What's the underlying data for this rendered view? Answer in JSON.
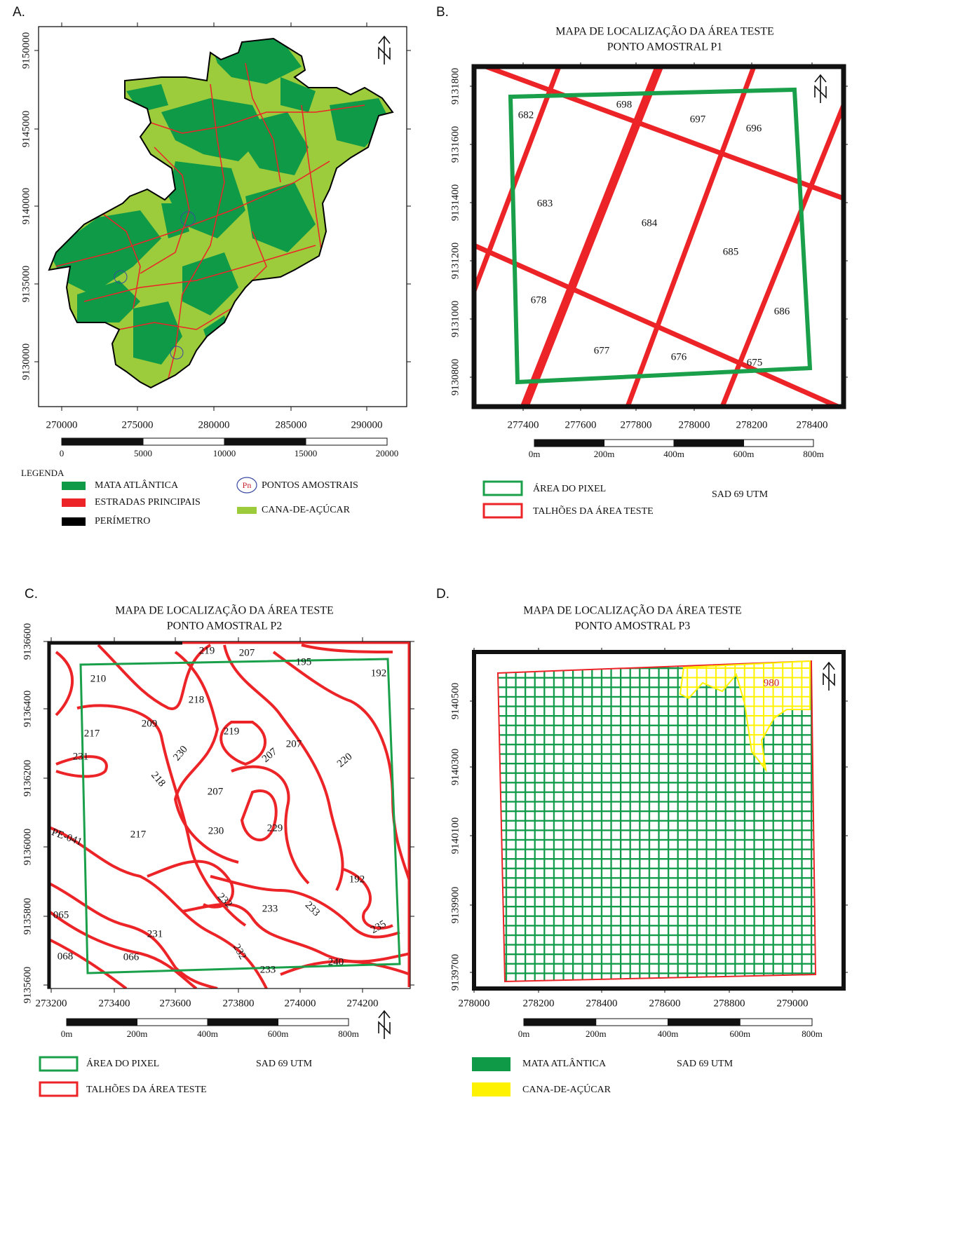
{
  "panels": [
    {
      "label": "A.",
      "xticks": [
        270000,
        275000,
        280000,
        285000,
        290000
      ],
      "yticks": [
        9150000,
        9145000,
        9140000,
        9135000,
        9130000
      ],
      "scale": [
        0,
        5000,
        10000,
        15000,
        20000
      ],
      "legend_title": "LEGENDA",
      "legend": [
        {
          "label": "MATA ATLÂNTICA",
          "color": "#0f9a48"
        },
        {
          "label": "ESTRADAS PRINCIPAIS",
          "color": "#ec2327"
        },
        {
          "label": "PERÍMETRO",
          "color": "#000000"
        },
        {
          "label": "PONTOS AMOSTRAIS",
          "icon": "Pn"
        },
        {
          "label": "CANA-DE-AÇÚCAR",
          "color": "#9ccb3b"
        }
      ]
    },
    {
      "label": "B.",
      "title": "MAPA DE LOCALIZAÇÃO DA ÁREA TESTE",
      "subtitle": "PONTO AMOSTRAL P1",
      "xticks": [
        277400,
        277600,
        277800,
        278000,
        278200,
        278400
      ],
      "yticks": [
        9131800,
        9131600,
        9131400,
        9131200,
        9131000,
        9130800
      ],
      "scale": [
        "0m",
        "200m",
        "400m",
        "600m",
        "800m"
      ],
      "legend": [
        {
          "label": "ÁREA DO PIXEL",
          "color": "#1aa04a"
        },
        {
          "label": "TALHÕES DA ÁREA TESTE",
          "color": "#ec2327"
        }
      ],
      "note": "SAD 69 UTM",
      "parcels": [
        "682",
        "698",
        "697",
        "696",
        "683",
        "684",
        "685",
        "678",
        "686",
        "677",
        "676",
        "675"
      ]
    },
    {
      "label": "C.",
      "title": "MAPA DE LOCALIZAÇÃO DA ÁREA TESTE",
      "subtitle": "PONTO AMOSTRAL P2",
      "xticks": [
        273200,
        273400,
        273600,
        273800,
        274000,
        274200
      ],
      "yticks": [
        9136600,
        9136400,
        9136200,
        9136000,
        9135800,
        9135600
      ],
      "scale": [
        "0m",
        "200m",
        "400m",
        "600m",
        "800m"
      ],
      "legend": [
        {
          "label": "ÁREA DO PIXEL",
          "color": "#1aa04a"
        },
        {
          "label": "TALHÕES DA ÁREA TESTE",
          "color": "#ec2327"
        }
      ],
      "note": "SAD 69 UTM",
      "parcels": [
        "219",
        "207",
        "195",
        "192",
        "210",
        "218",
        "209",
        "217",
        "219",
        "230",
        "207",
        "207",
        "220",
        "231",
        "218",
        "207",
        "229",
        "217",
        "230",
        "PE-041",
        "192",
        "232",
        "233",
        "233",
        "065",
        "235",
        "231",
        "068",
        "066",
        "232",
        "240",
        "233"
      ]
    },
    {
      "label": "D.",
      "title": "MAPA DE LOCALIZAÇÃO DA ÁREA TESTE",
      "subtitle": "PONTO AMOSTRAL P3",
      "xticks": [
        278000,
        278200,
        278400,
        278600,
        278800,
        279000
      ],
      "yticks": [
        9140500,
        9140300,
        9140100,
        9139900,
        9139700
      ],
      "scale": [
        "0m",
        "200m",
        "400m",
        "600m",
        "800m"
      ],
      "legend": [
        {
          "label": "MATA ATLÂNTICA",
          "color": "#0f9a48"
        },
        {
          "label": "CANA-DE-AÇÚCAR",
          "color": "#fff200"
        }
      ],
      "note": "SAD 69 UTM",
      "parcels": [
        "980"
      ]
    }
  ]
}
